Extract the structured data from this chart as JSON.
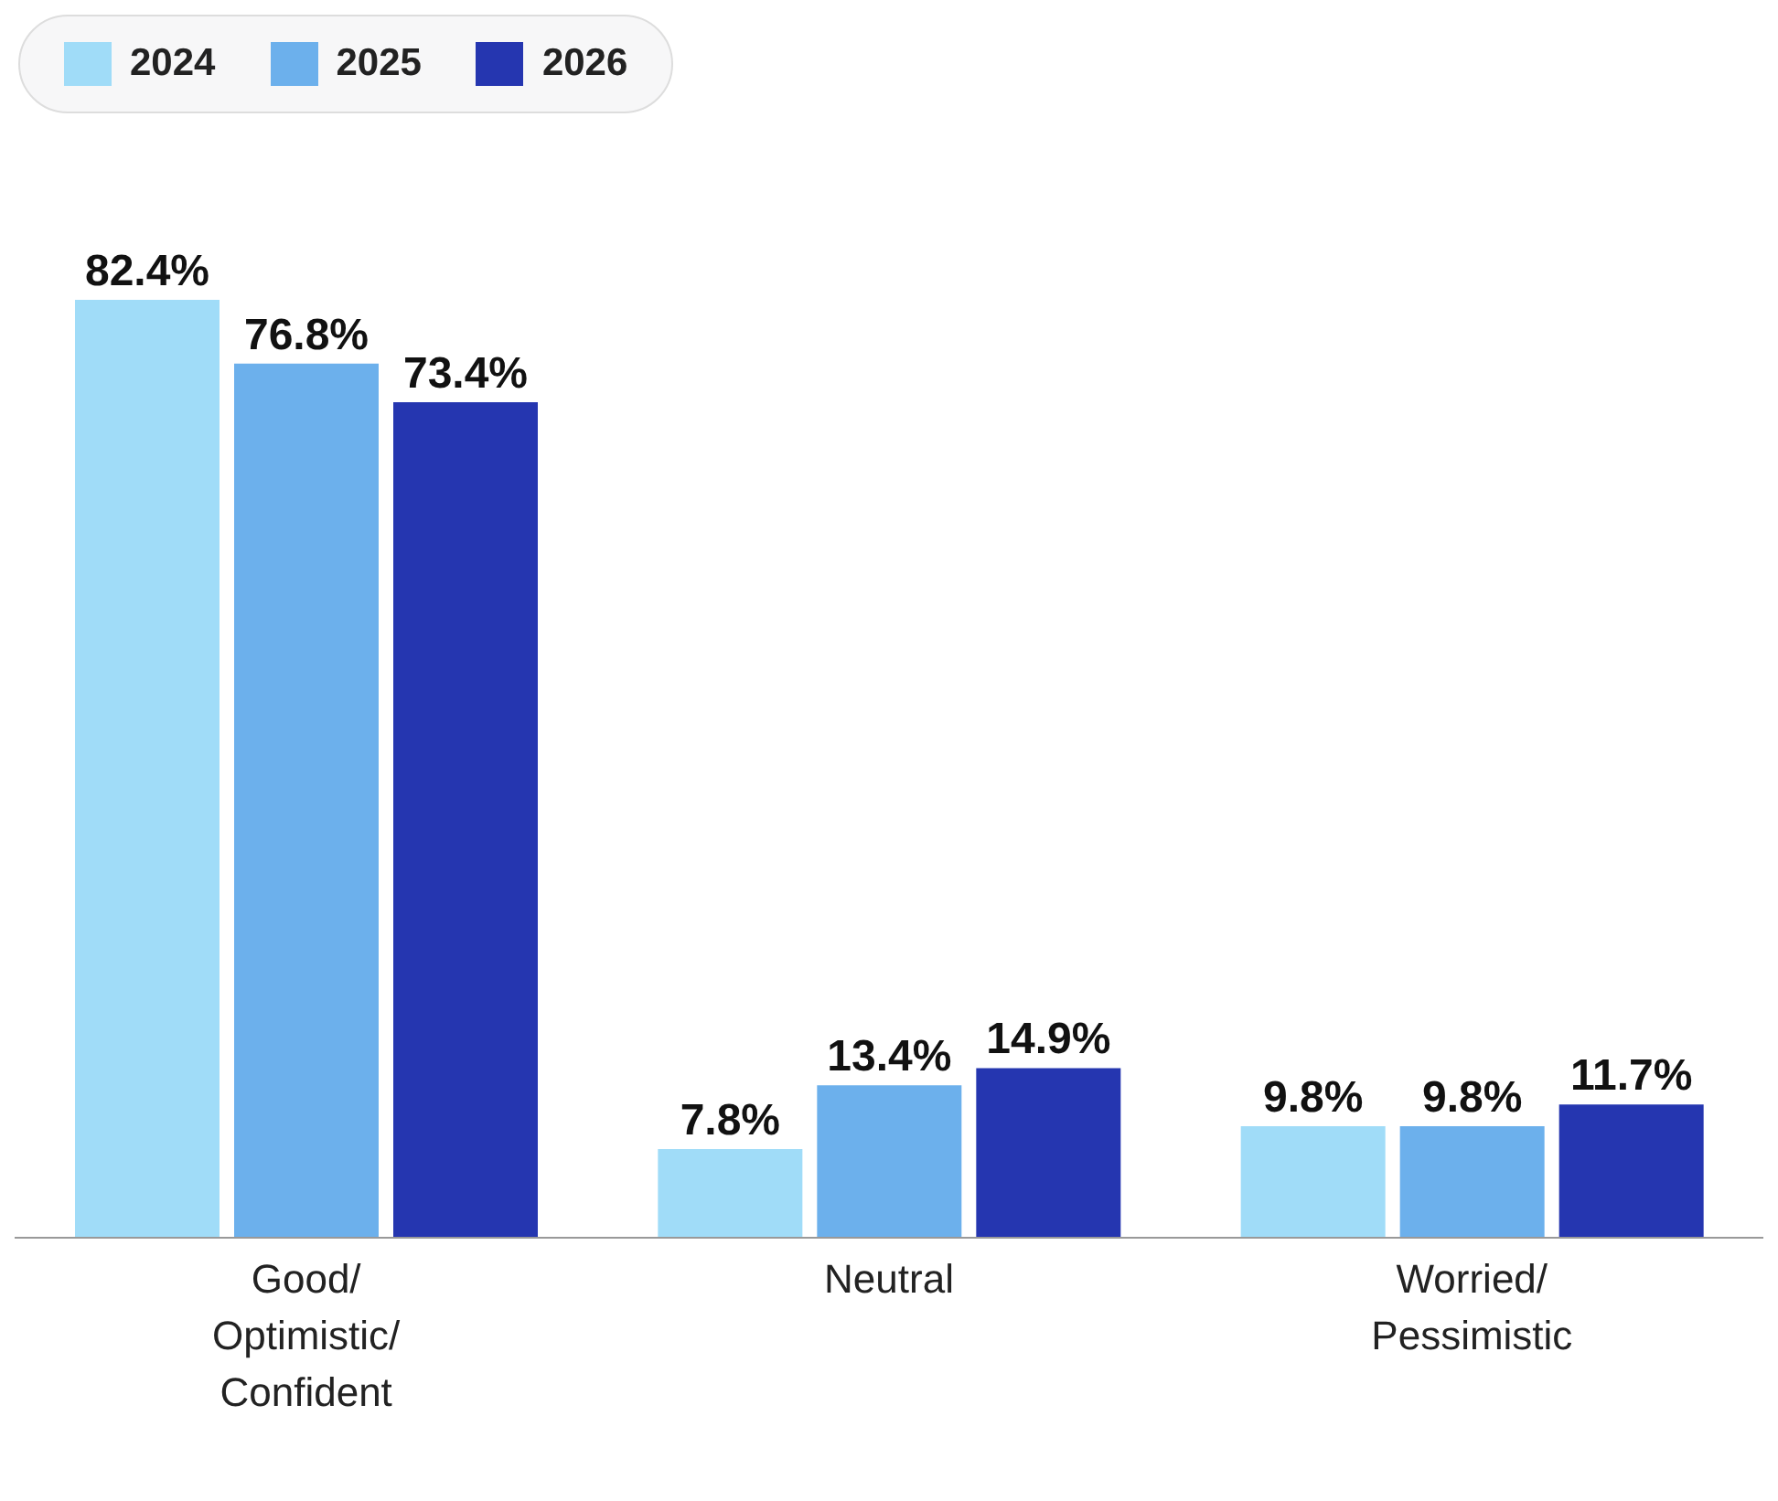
{
  "chart_data": {
    "type": "bar",
    "categories": [
      "Good/Optimistic/Confident",
      "Neutral",
      "Worried/Pessimistic"
    ],
    "series": [
      {
        "name": "2024",
        "color": "#a0dcf8",
        "values": [
          82.4,
          7.8,
          9.8
        ],
        "value_labels": [
          "82.4%",
          "7.8%",
          "9.8%"
        ]
      },
      {
        "name": "2025",
        "color": "#6cb0ec",
        "values": [
          76.8,
          13.4,
          9.8
        ],
        "value_labels": [
          "76.8%",
          "13.4%",
          "9.8%"
        ]
      },
      {
        "name": "2026",
        "color": "#2536b0",
        "values": [
          73.4,
          14.9,
          11.7
        ],
        "value_labels": [
          "73.4%",
          "14.9%",
          "11.7%"
        ]
      }
    ],
    "legend": "top left",
    "grid": false
  }
}
